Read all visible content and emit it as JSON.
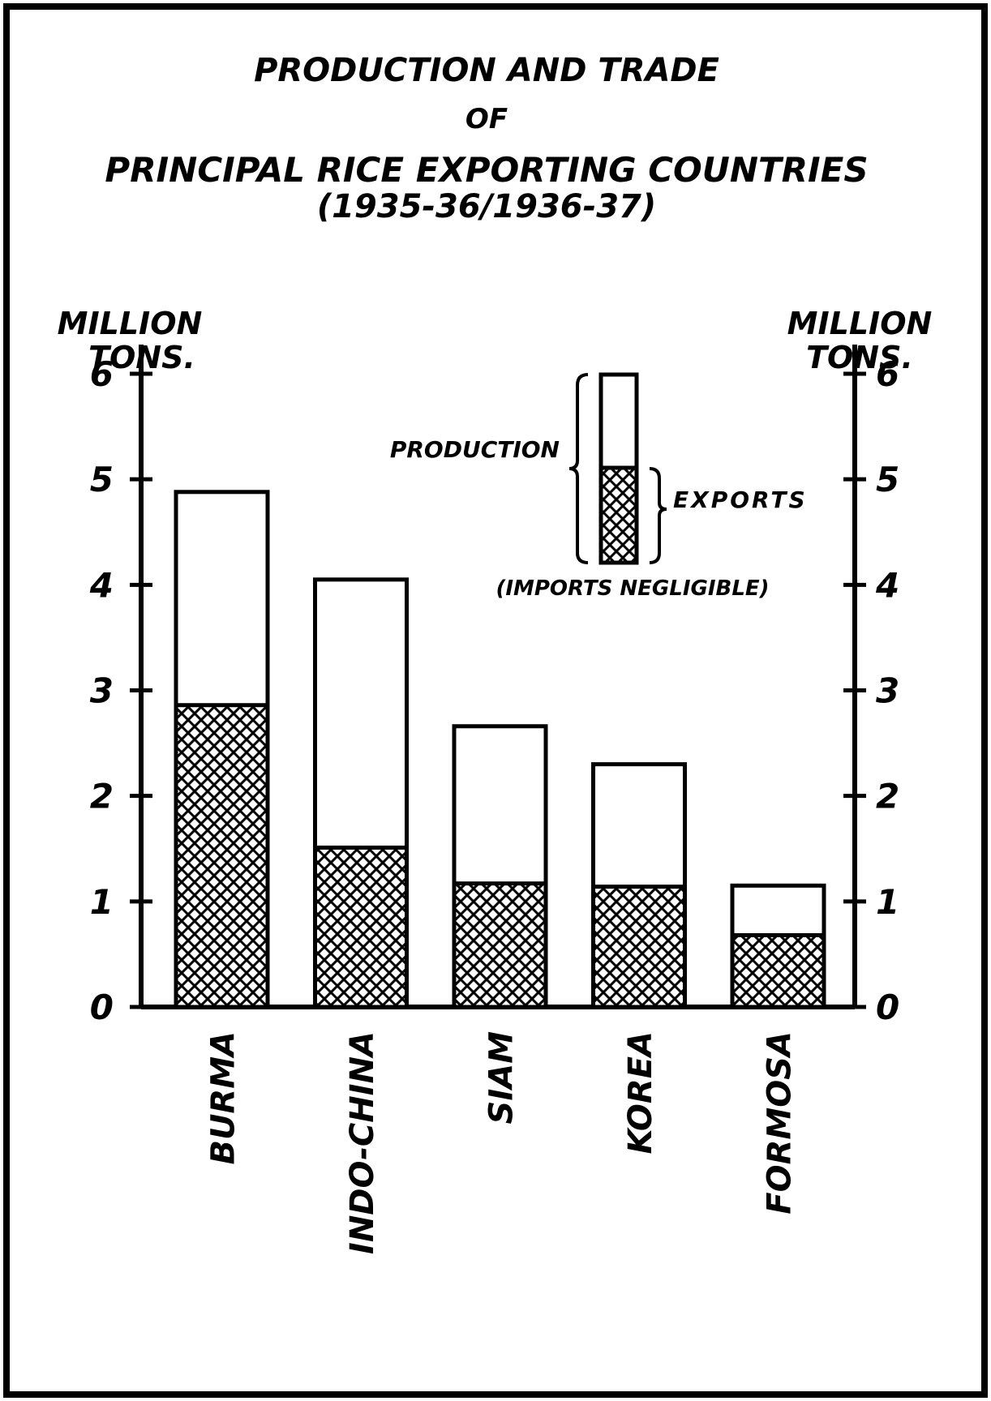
{
  "chart_data": {
    "type": "bar",
    "title": [
      "PRODUCTION AND TRADE",
      "OF",
      "PRINCIPAL RICE EXPORTING COUNTRIES"
    ],
    "subtitle": "(1935-36/1936-37)",
    "ylabel": [
      "MILLION",
      "TONS."
    ],
    "y2label": [
      "MILLION",
      "TONS."
    ],
    "categories": [
      "BURMA",
      "INDO-CHINA",
      "SIAM",
      "KOREA",
      "FORMOSA"
    ],
    "series": [
      {
        "name": "PRODUCTION",
        "color": "#ffffff",
        "values": [
          4.88,
          4.05,
          2.66,
          2.3,
          1.15
        ]
      },
      {
        "name": "EXPORTS",
        "color": "#000000",
        "values": [
          2.86,
          1.51,
          1.17,
          1.14,
          0.68
        ]
      }
    ],
    "legend_note": "(IMPORTS NEGLIGIBLE)",
    "ylim": [
      0,
      6
    ],
    "yticks": [
      0,
      1,
      2,
      3,
      4,
      5,
      6
    ],
    "y2lim": [
      0,
      6
    ],
    "y2ticks": [
      0,
      1,
      2,
      3,
      4,
      5,
      6
    ]
  }
}
